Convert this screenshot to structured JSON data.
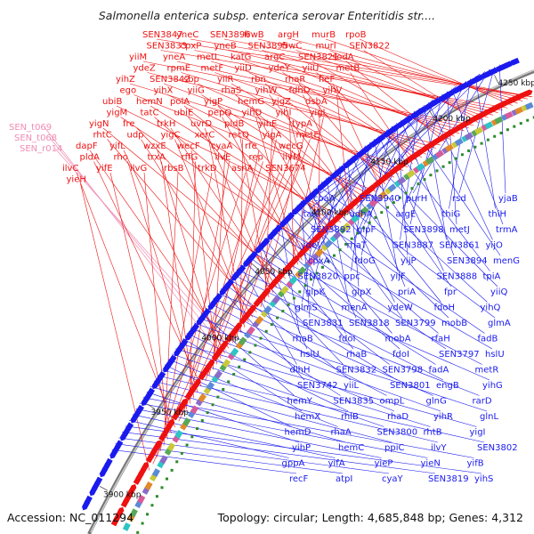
{
  "title": "Salmonella enterica subsp. enterica serovar Enteritidis str....",
  "accession": "Accession: NC_011294",
  "topology": "Topology: circular; Length: 4,685,848 bp; Genes: 4,312",
  "colors": {
    "forward": "#ee1111",
    "reverse": "#1a1aee",
    "pink": "#f08cb4",
    "backbone": "#777777",
    "gc_skew": "#2a8a2a"
  },
  "kbp_ticks": [
    "3900 kbp",
    "3950 kbp",
    "4000 kbp",
    "4050 kbp",
    "4100 kbp",
    "4150 kbp",
    "4200 kbp",
    "4250 kbp"
  ],
  "red_labels": [
    "SEN3847",
    "yneC",
    "SEN3896",
    "frwB",
    "argH",
    "murB",
    "rpoB",
    "SEN3833",
    "cpxP",
    "yneB",
    "SEN3895",
    "frwC",
    "murI",
    "SEN3822",
    "yiiM",
    "yneA",
    "metL",
    "katG",
    "argC",
    "SEN3821",
    "sodA",
    "ydeZ",
    "rpmE",
    "metF",
    "yiiD",
    "ydeY",
    "yiiU",
    "metB",
    "yihZ",
    "SEN3842",
    "sbp",
    "yiiR",
    "rbn",
    "rhaR",
    "fieF",
    "ego",
    "yihX",
    "yiiG",
    "rhaS",
    "yihW",
    "fdhD",
    "yihV",
    "ubiB",
    "hemN",
    "polA",
    "yigP",
    "hemG",
    "yigZ",
    "dsbA",
    "yigM",
    "tatC",
    "ubiE",
    "pepQ",
    "yihD",
    "yihI",
    "yigL",
    "yigN",
    "fre",
    "trkH",
    "uvrD",
    "pldB",
    "yihE",
    "typA",
    "rhtC",
    "udp",
    "yigC",
    "xerC",
    "recQ",
    "yigA",
    "metE",
    "dapF",
    "yifL",
    "wzxE",
    "wecF",
    "cyaA",
    "rfe",
    "wecG",
    "pldA",
    "rho",
    "trxA",
    "rffG",
    "ilvE",
    "rep",
    "ilvM",
    "ilvC",
    "yifE",
    "ilvG",
    "rbsB",
    "trkD",
    "asnA",
    "SEN3674",
    "yieH"
  ],
  "pink_labels": [
    "SEN_t069",
    "SEN_t068",
    "SEN_r014"
  ],
  "blue_labels": [
    "yjaB",
    "rsd",
    "purH",
    "SEN3940",
    "coaA",
    "thiH",
    "thiG",
    "argE",
    "udhA",
    "talC",
    "trmA",
    "metJ",
    "SEN3898",
    "glpF",
    "SEN3892",
    "yijO",
    "SEN3861",
    "SEN3887",
    "rhaT",
    "ydeV",
    "menG",
    "SEN3894",
    "yijP",
    "fdoG",
    "cpxA",
    "tpiA",
    "SEN3888",
    "yijF",
    "ppc",
    "SEN3820",
    "yiiQ",
    "fpr",
    "priA",
    "glpX",
    "glpK",
    "yihQ",
    "fdoH",
    "ydeW",
    "menA",
    "glmS",
    "glmA",
    "mobB",
    "SEN3799",
    "SEN3818",
    "SEN3831",
    "fadB",
    "rfaH",
    "mobA",
    "fdoI",
    "rhaB",
    "hslU",
    "SEN3797",
    "fdoI",
    "rhaB",
    "hslU",
    "metR",
    "fadA",
    "SEN3798",
    "SEN3832",
    "dlhH",
    "yihG",
    "engB",
    "SEN3801",
    "yiiL",
    "SEN3742",
    "rarD",
    "glnG",
    "ompL",
    "SEN3835",
    "hemY",
    "glnL",
    "yihR",
    "rhaD",
    "rhlB",
    "hemX",
    "yigI",
    "rhtB",
    "SEN3800",
    "rhaA",
    "hemD",
    "SEN3802",
    "ilvY",
    "ppiC",
    "hemC",
    "yihP",
    "yifB",
    "yieN",
    "yieP",
    "yifA",
    "gppA",
    "yihS",
    "SEN3819",
    "cyaY",
    "atpI",
    "recF"
  ]
}
